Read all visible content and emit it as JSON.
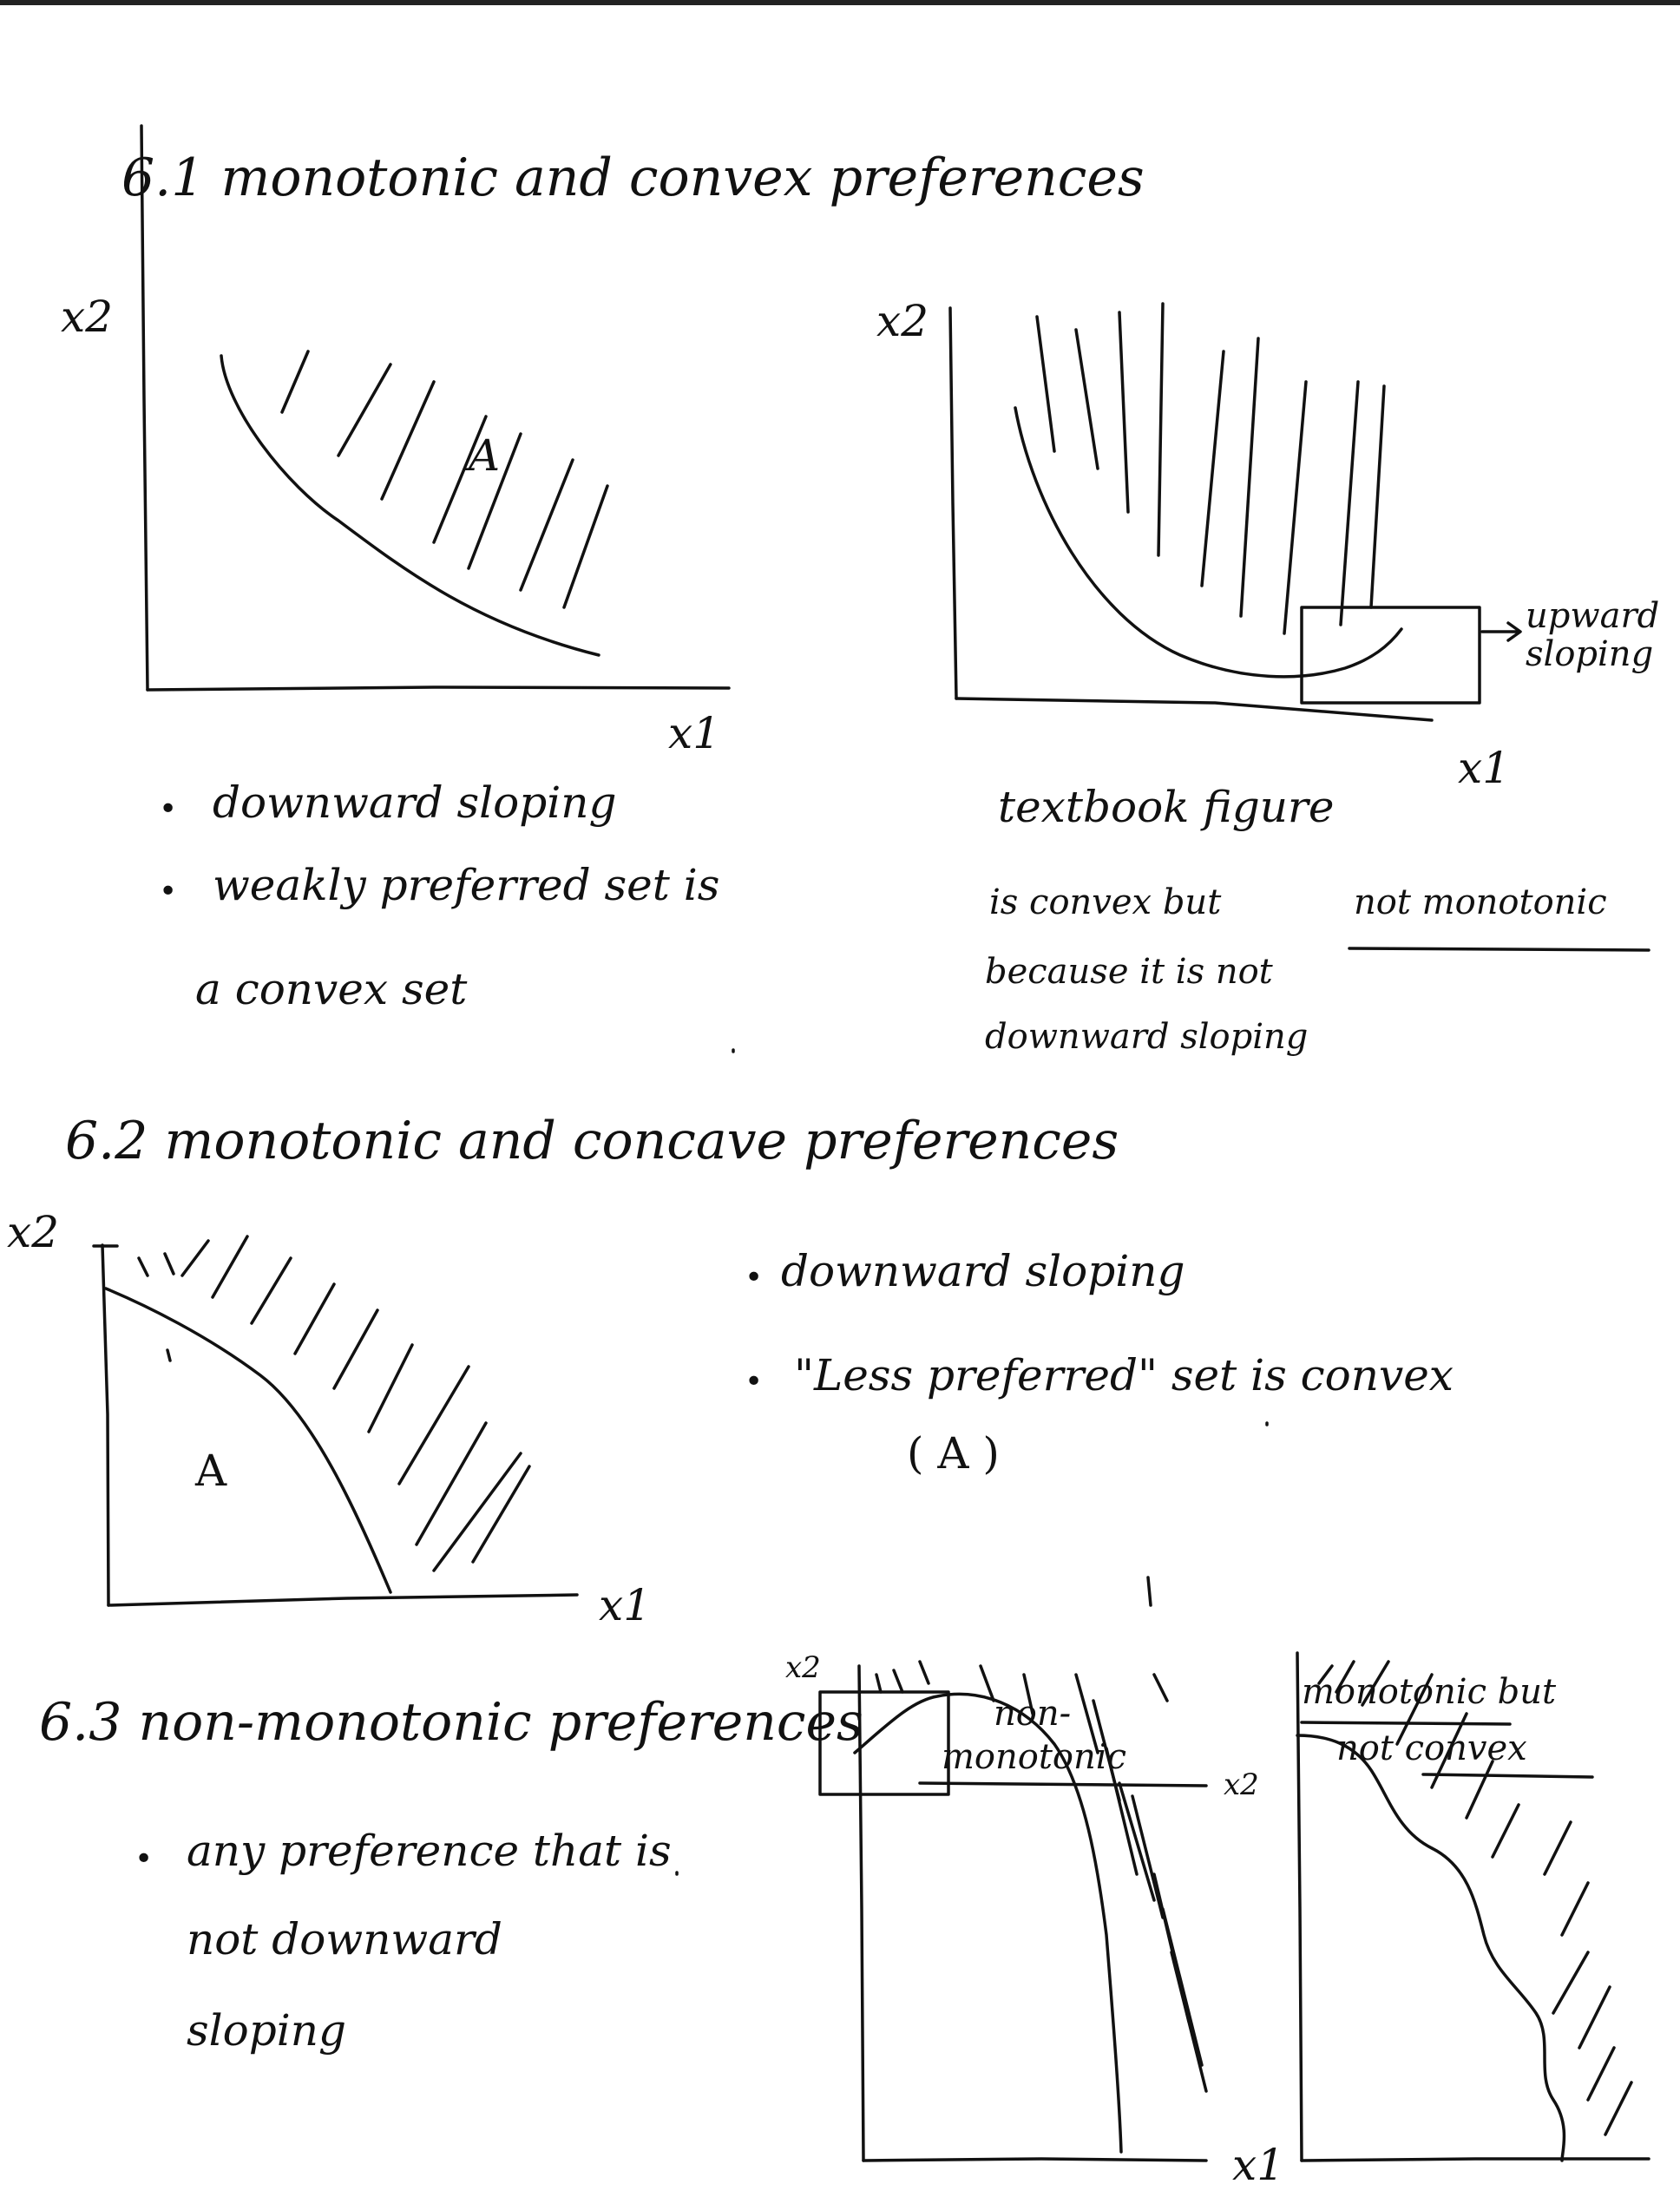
{
  "section_1": {
    "title": "6.1 monotonic and convex preferences",
    "fig_a": {
      "y_label": "x2",
      "x_label": "x1",
      "region_label": "A"
    },
    "fig_b": {
      "y_label": "x2",
      "x_label": "x1",
      "annotation": "upward sloping"
    },
    "left_notes": {
      "bullet": "•",
      "line1": "downward sloping",
      "line2": "weakly preferred set is",
      "line3": "a convex set"
    },
    "right_notes": {
      "line1": "textbook figure",
      "line2_a": "is convex but",
      "line2_b": "not monotonic",
      "line3": "because it is not",
      "line4": "downward sloping"
    }
  },
  "section_2": {
    "title": "6.2 monotonic and concave preferences",
    "fig": {
      "y_label": "x2",
      "x_label": "x1",
      "region_label": "A"
    },
    "notes": {
      "bullet": "•",
      "line1": "downward sloping",
      "line2": "\"Less preferred\" set is convex",
      "line3": "( A )"
    }
  },
  "section_3": {
    "title": "6.3 non-monotonic preferences",
    "notes": {
      "bullet": "•",
      "line1": "any preference that is",
      "line2": "not downward",
      "line3": "sloping"
    },
    "fig_left": {
      "caption_1": "non-",
      "caption_2": "monotonic",
      "y_label": "x2"
    },
    "fig_right": {
      "caption_1": "monotonic but",
      "caption_2": "not convex",
      "y_label": "x2"
    },
    "shared_x_label": "x1"
  }
}
